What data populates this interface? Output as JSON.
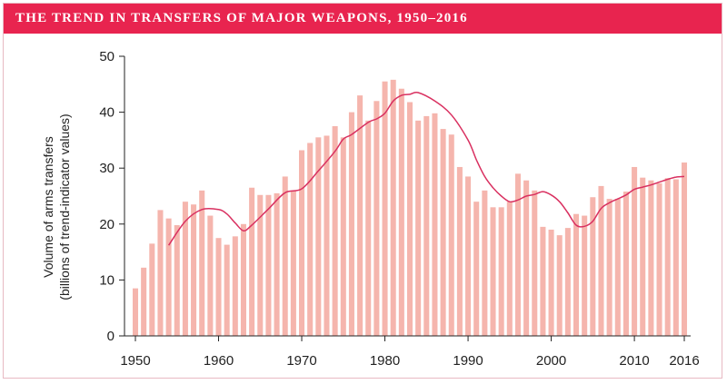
{
  "title": "THE TREND IN TRANSFERS OF MAJOR WEAPONS, 1950–2016",
  "colors": {
    "title_bar": "#e8244f",
    "bar": "#f5b5ad",
    "trend_line": "#d93060",
    "axis": "#222222"
  },
  "chart_data": {
    "type": "bar",
    "title": "THE TREND IN TRANSFERS OF MAJOR WEAPONS, 1950–2016",
    "ylabel_line1": "Volume of arms transfers",
    "ylabel_line2": "(billions of trend-indicator values)",
    "xlabel": "",
    "ylim": [
      0,
      50
    ],
    "xlim": [
      1950,
      2016
    ],
    "yticks": [
      0,
      10,
      20,
      30,
      40,
      50
    ],
    "xticks": [
      1950,
      1960,
      1970,
      1980,
      1990,
      2000,
      2010,
      2016
    ],
    "grid": false,
    "years": [
      1950,
      1951,
      1952,
      1953,
      1954,
      1955,
      1956,
      1957,
      1958,
      1959,
      1960,
      1961,
      1962,
      1963,
      1964,
      1965,
      1966,
      1967,
      1968,
      1969,
      1970,
      1971,
      1972,
      1973,
      1974,
      1975,
      1976,
      1977,
      1978,
      1979,
      1980,
      1981,
      1982,
      1983,
      1984,
      1985,
      1986,
      1987,
      1988,
      1989,
      1990,
      1991,
      1992,
      1993,
      1994,
      1995,
      1996,
      1997,
      1998,
      1999,
      2000,
      2001,
      2002,
      2003,
      2004,
      2005,
      2006,
      2007,
      2008,
      2009,
      2010,
      2011,
      2012,
      2013,
      2014,
      2015,
      2016
    ],
    "values": [
      8.5,
      12.2,
      16.5,
      22.5,
      21,
      19.8,
      24,
      23.5,
      26,
      21.5,
      17.5,
      16.3,
      17.8,
      20,
      26.5,
      25.2,
      25.2,
      25.5,
      28.5,
      26,
      33.2,
      34.5,
      35.5,
      35.8,
      37.5,
      35.5,
      40,
      43,
      38.5,
      42,
      45.5,
      45.8,
      44.2,
      41.8,
      38.5,
      39.3,
      39.8,
      37,
      36,
      30.2,
      28.5,
      24,
      26,
      23,
      23,
      24,
      29,
      27.8,
      26,
      19.5,
      19,
      18,
      19.3,
      21.8,
      21.5,
      24.8,
      26.8,
      24.5,
      24.5,
      25.8,
      30.2,
      28.3,
      27.8,
      27.3,
      28.2,
      28,
      31
    ],
    "series": [
      {
        "name": "",
        "type": "line",
        "points": [
          [
            1954,
            16.2
          ],
          [
            1956,
            20.5
          ],
          [
            1958,
            22.6
          ],
          [
            1960,
            22.6
          ],
          [
            1961,
            21.8
          ],
          [
            1962,
            20.2
          ],
          [
            1963,
            18.8
          ],
          [
            1964,
            19.8
          ],
          [
            1966,
            22.7
          ],
          [
            1968,
            25.6
          ],
          [
            1970,
            26.3
          ],
          [
            1972,
            29.5
          ],
          [
            1974,
            33
          ],
          [
            1975,
            35.2
          ],
          [
            1976,
            36
          ],
          [
            1978,
            38.2
          ],
          [
            1979,
            38.8
          ],
          [
            1980,
            39.8
          ],
          [
            1981,
            42
          ],
          [
            1982,
            43
          ],
          [
            1983,
            43.2
          ],
          [
            1984,
            43.5
          ],
          [
            1986,
            42
          ],
          [
            1988,
            39.5
          ],
          [
            1990,
            35
          ],
          [
            1991,
            31.5
          ],
          [
            1992,
            28.5
          ],
          [
            1993,
            26.5
          ],
          [
            1994,
            25
          ],
          [
            1995,
            24
          ],
          [
            1996,
            24.3
          ],
          [
            1997,
            25
          ],
          [
            1998,
            25.3
          ],
          [
            1999,
            25.8
          ],
          [
            2000,
            25.2
          ],
          [
            2001,
            24
          ],
          [
            2002,
            22
          ],
          [
            2003,
            19.8
          ],
          [
            2004,
            19.6
          ],
          [
            2005,
            20.5
          ],
          [
            2006,
            22.8
          ],
          [
            2007,
            23.8
          ],
          [
            2008,
            24.5
          ],
          [
            2009,
            25.2
          ],
          [
            2010,
            26.2
          ],
          [
            2011,
            26.6
          ],
          [
            2012,
            27
          ],
          [
            2013,
            27.5
          ],
          [
            2014,
            28
          ],
          [
            2015,
            28.4
          ],
          [
            2016,
            28.5
          ]
        ]
      }
    ]
  }
}
